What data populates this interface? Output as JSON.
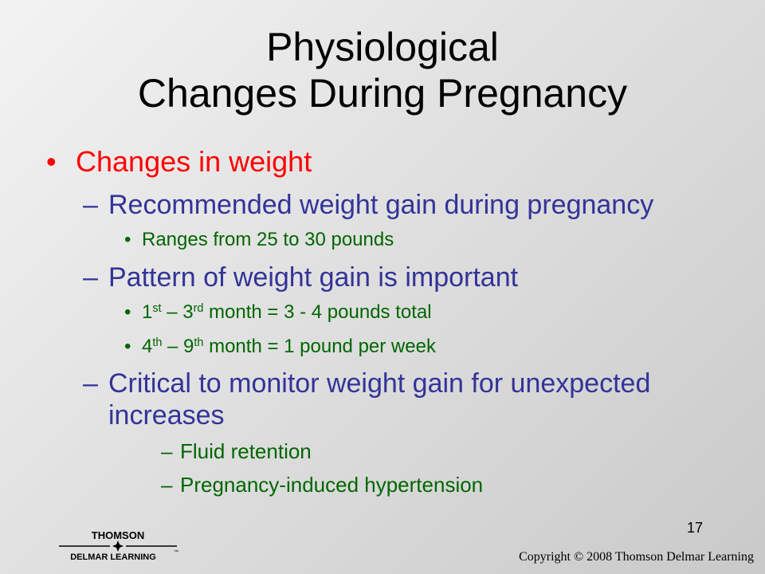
{
  "title": {
    "line1": "Physiological",
    "line2": "Changes During Pregnancy"
  },
  "bullets": {
    "dot": "•",
    "dash": "–",
    "l1": "Changes in weight",
    "l2a": "Recommended weight gain during pregnancy",
    "l3a": "Ranges from 25 to 30 pounds",
    "l2b": "Pattern of weight gain is important",
    "l3b": {
      "n1": "1",
      "s1": "st",
      "mid": " – 3",
      "s2": "rd",
      "end": " month = 3 - 4 pounds total"
    },
    "l3c": {
      "n1": "4",
      "s1": "th",
      "mid": " – 9",
      "s2": "th",
      "end": " month = 1 pound per week"
    },
    "l2c_line1": "Critical to monitor weight gain for unexpected",
    "l2c_line2": "increases",
    "l4a": "Fluid retention",
    "l4b": "Pregnancy-induced hypertension"
  },
  "slide_number": "17",
  "footer": {
    "logo_top": "THOMSON",
    "logo_bottom": "DELMAR LEARNING",
    "logo_tm": "™",
    "copyright": "Copyright © 2008 Thomson Delmar Learning"
  },
  "colors": {
    "level1": "#ff0000",
    "level2": "#333399",
    "level3": "#006600",
    "title": "#000000"
  }
}
